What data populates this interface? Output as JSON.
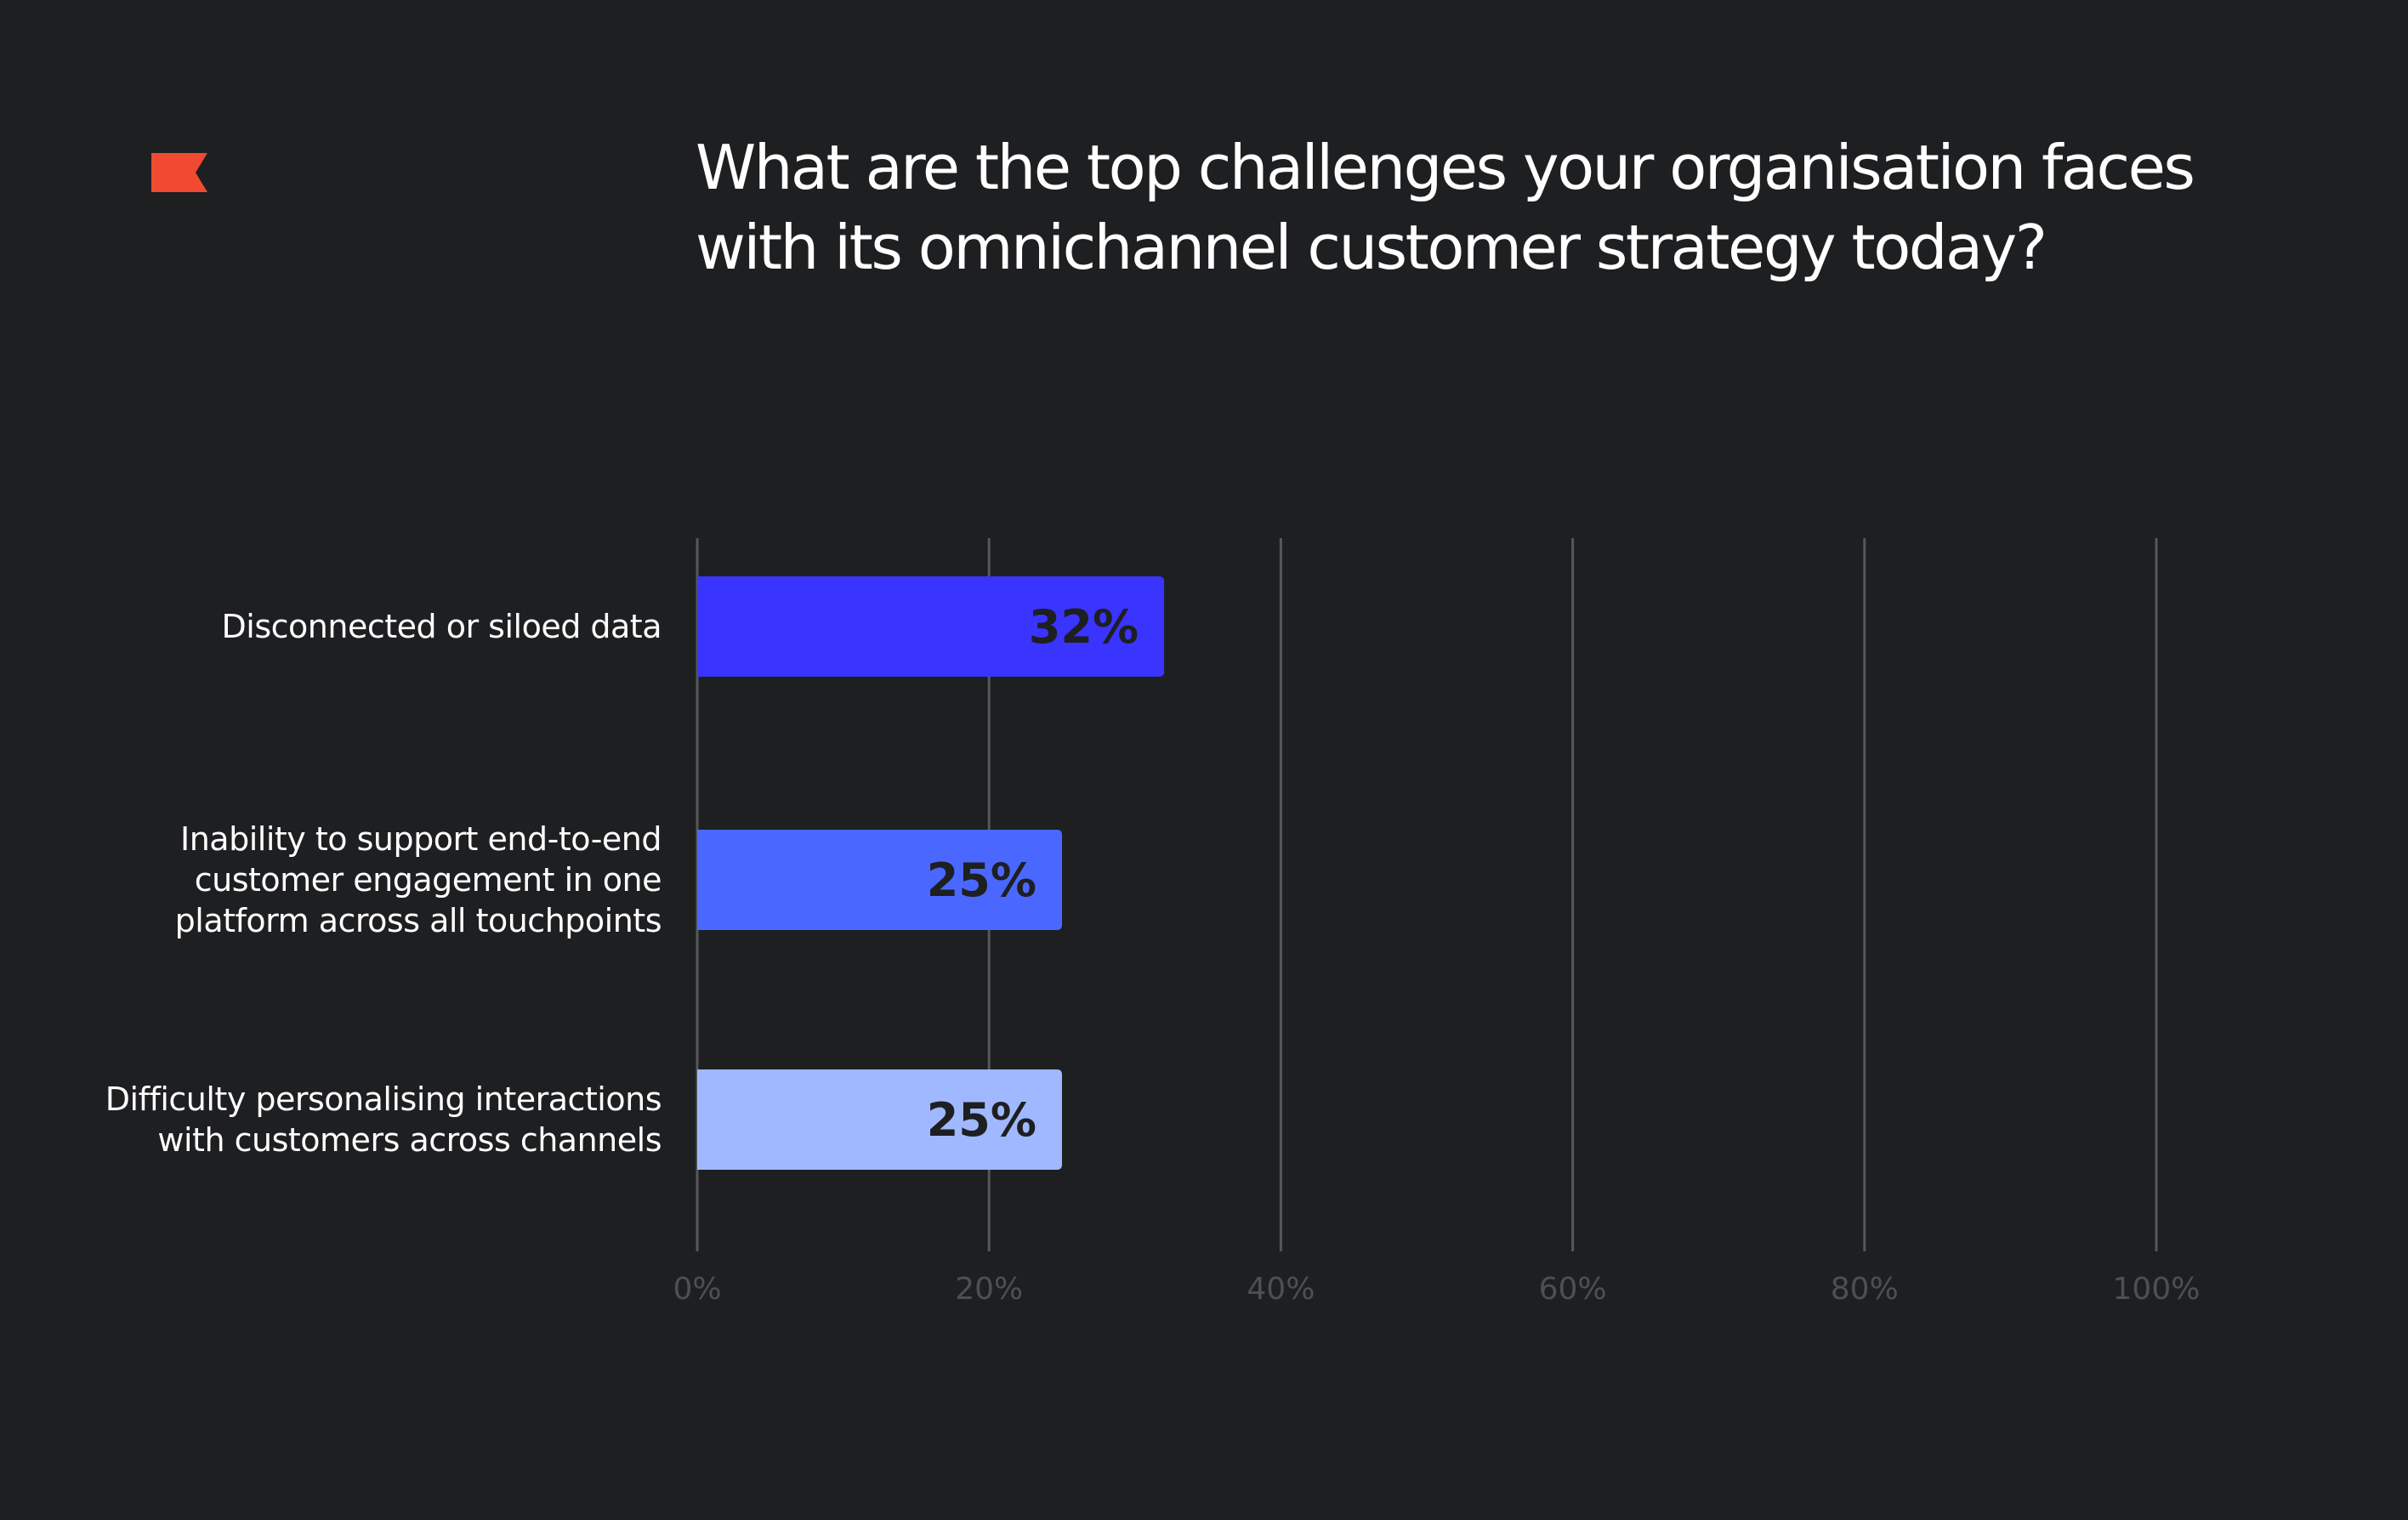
{
  "title": "What are the top challenges your organisation faces with its omnichannel customer strategy today?",
  "logo_icon": "flag-icon",
  "colors": {
    "background": "#1e1f21",
    "logo": "#f04a30",
    "gridline": "#55575b",
    "tick_text": "#4d4f53",
    "label_text": "#ffffff",
    "value_text": "#1e1f21"
  },
  "chart_data": {
    "type": "bar",
    "orientation": "horizontal",
    "categories": [
      [
        "Disconnected or siloed data"
      ],
      [
        "Inability to support end-to-end",
        "customer engagement in one",
        "platform across all touchpoints"
      ],
      [
        "Difficulty personalising interactions",
        "with customers across channels"
      ]
    ],
    "values": [
      32,
      25,
      25
    ],
    "value_labels": [
      "32%",
      "25%",
      "25%"
    ],
    "bar_colors": [
      "#3a34ff",
      "#4a68ff",
      "#a0b8ff"
    ],
    "xlim": [
      0,
      100
    ],
    "x_ticks": [
      0,
      20,
      40,
      60,
      80,
      100
    ],
    "x_tick_labels": [
      "0%",
      "20%",
      "40%",
      "60%",
      "80%",
      "100%"
    ],
    "grid": true
  }
}
